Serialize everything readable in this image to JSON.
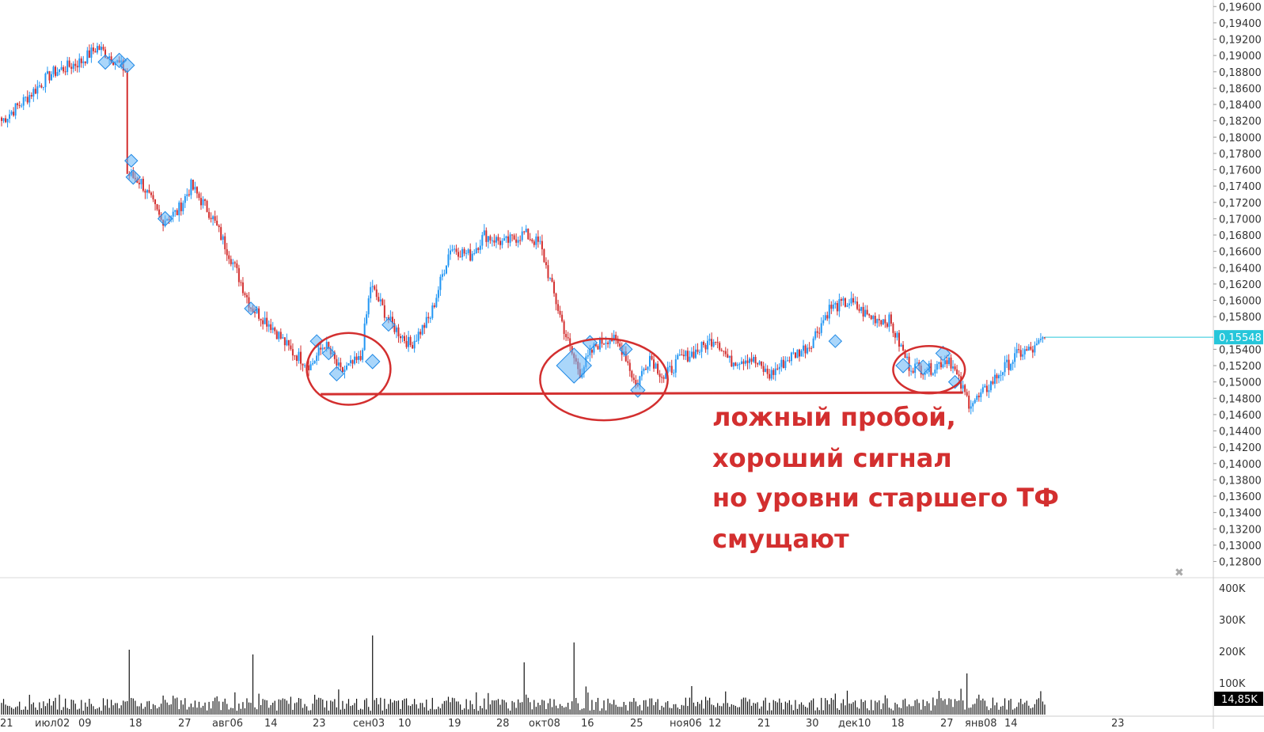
{
  "chart_data": {
    "type": "candlestick",
    "price_axis": {
      "ticks": [
        "0,19600",
        "0,19400",
        "0,19200",
        "0,19000",
        "0,18800",
        "0,18600",
        "0,18400",
        "0,18200",
        "0,18000",
        "0,17800",
        "0,17600",
        "0,17400",
        "0,17200",
        "0,17000",
        "0,16800",
        "0,16600",
        "0,16400",
        "0,16200",
        "0,16000",
        "0,15800",
        "0,15400",
        "0,15200",
        "0,15000",
        "0,14800",
        "0,14600",
        "0,14400",
        "0,14200",
        "0,14000",
        "0,13800",
        "0,13600",
        "0,13400",
        "0,13200",
        "0,13000",
        "0,12800"
      ],
      "range": [
        0.1265,
        0.1968
      ]
    },
    "last_price": {
      "value": 0.15548,
      "label": "0,15548",
      "color": "#26c6da"
    },
    "volume_axis": {
      "ticks": [
        "400K",
        "300K",
        "200K",
        "100K"
      ],
      "range": [
        0,
        420000
      ],
      "last_label": "14,85K"
    },
    "x_axis": {
      "labels": [
        "21",
        "июл02",
        "09",
        "18",
        "27",
        "авг06",
        "14",
        "23",
        "сен03",
        "10",
        "19",
        "28",
        "окт08",
        "16",
        "25",
        "ноя06",
        "12",
        "21",
        "30",
        "дек10",
        "18",
        "27",
        "янв08",
        "14",
        "23"
      ]
    },
    "colors": {
      "up": "#2196f3",
      "down": "#d32f2f",
      "volume": "#111111",
      "marker": "#64b5f6",
      "annotation": "#d32f2f"
    },
    "key_points": [
      {
        "i": 0,
        "close": 0.182
      },
      {
        "i": 10,
        "close": 0.1842
      },
      {
        "i": 25,
        "close": 0.1878
      },
      {
        "i": 40,
        "close": 0.1893
      },
      {
        "i": 48,
        "close": 0.191
      },
      {
        "i": 55,
        "close": 0.1898
      },
      {
        "i": 62,
        "close": 0.1882
      },
      {
        "i": 63,
        "close": 0.1755
      },
      {
        "i": 70,
        "close": 0.1745
      },
      {
        "i": 80,
        "close": 0.1698
      },
      {
        "i": 88,
        "close": 0.1708
      },
      {
        "i": 95,
        "close": 0.174
      },
      {
        "i": 105,
        "close": 0.1705
      },
      {
        "i": 115,
        "close": 0.1652
      },
      {
        "i": 125,
        "close": 0.1592
      },
      {
        "i": 135,
        "close": 0.157
      },
      {
        "i": 145,
        "close": 0.1538
      },
      {
        "i": 155,
        "close": 0.152
      },
      {
        "i": 162,
        "close": 0.1547
      },
      {
        "i": 170,
        "close": 0.1512
      },
      {
        "i": 180,
        "close": 0.1528
      },
      {
        "i": 185,
        "close": 0.1618
      },
      {
        "i": 195,
        "close": 0.1572
      },
      {
        "i": 205,
        "close": 0.1545
      },
      {
        "i": 215,
        "close": 0.158
      },
      {
        "i": 225,
        "close": 0.1665
      },
      {
        "i": 235,
        "close": 0.1655
      },
      {
        "i": 242,
        "close": 0.168
      },
      {
        "i": 252,
        "close": 0.167
      },
      {
        "i": 262,
        "close": 0.1682
      },
      {
        "i": 270,
        "close": 0.1668
      },
      {
        "i": 278,
        "close": 0.1598
      },
      {
        "i": 285,
        "close": 0.154
      },
      {
        "i": 290,
        "close": 0.1512
      },
      {
        "i": 298,
        "close": 0.1545
      },
      {
        "i": 305,
        "close": 0.1555
      },
      {
        "i": 312,
        "close": 0.1538
      },
      {
        "i": 318,
        "close": 0.1495
      },
      {
        "i": 325,
        "close": 0.1532
      },
      {
        "i": 332,
        "close": 0.1505
      },
      {
        "i": 340,
        "close": 0.1528
      },
      {
        "i": 350,
        "close": 0.154
      },
      {
        "i": 358,
        "close": 0.1555
      },
      {
        "i": 365,
        "close": 0.1525
      },
      {
        "i": 375,
        "close": 0.153
      },
      {
        "i": 385,
        "close": 0.1508
      },
      {
        "i": 395,
        "close": 0.153
      },
      {
        "i": 405,
        "close": 0.1545
      },
      {
        "i": 415,
        "close": 0.159
      },
      {
        "i": 425,
        "close": 0.1598
      },
      {
        "i": 435,
        "close": 0.158
      },
      {
        "i": 445,
        "close": 0.1575
      },
      {
        "i": 455,
        "close": 0.152
      },
      {
        "i": 465,
        "close": 0.1515
      },
      {
        "i": 475,
        "close": 0.153
      },
      {
        "i": 480,
        "close": 0.15
      },
      {
        "i": 485,
        "close": 0.1475
      },
      {
        "i": 490,
        "close": 0.148
      },
      {
        "i": 500,
        "close": 0.151
      },
      {
        "i": 510,
        "close": 0.1535
      },
      {
        "i": 518,
        "close": 0.154
      },
      {
        "i": 523,
        "close": 0.15548
      }
    ],
    "volume_spikes": [
      {
        "i": 64,
        "v": 205000
      },
      {
        "i": 126,
        "v": 190000
      },
      {
        "i": 186,
        "v": 250000
      },
      {
        "i": 262,
        "v": 165000
      },
      {
        "i": 287,
        "v": 228000
      },
      {
        "i": 346,
        "v": 90000
      },
      {
        "i": 470,
        "v": 75000
      },
      {
        "i": 484,
        "v": 130000
      }
    ],
    "markers": [
      {
        "i": 52,
        "p": 0.1892,
        "s": 9
      },
      {
        "i": 59,
        "p": 0.1894,
        "s": 9
      },
      {
        "i": 63,
        "p": 0.1888,
        "s": 9
      },
      {
        "i": 65,
        "p": 0.1771,
        "s": 8
      },
      {
        "i": 66,
        "p": 0.1751,
        "s": 9
      },
      {
        "i": 82,
        "p": 0.17,
        "s": 9
      },
      {
        "i": 125,
        "p": 0.159,
        "s": 8
      },
      {
        "i": 158,
        "p": 0.155,
        "s": 8
      },
      {
        "i": 164,
        "p": 0.1535,
        "s": 8
      },
      {
        "i": 168,
        "p": 0.151,
        "s": 9
      },
      {
        "i": 186,
        "p": 0.1525,
        "s": 9
      },
      {
        "i": 194,
        "p": 0.157,
        "s": 8
      },
      {
        "i": 287,
        "p": 0.152,
        "s": 22
      },
      {
        "i": 295,
        "p": 0.1548,
        "s": 9
      },
      {
        "i": 313,
        "p": 0.154,
        "s": 8
      },
      {
        "i": 319,
        "p": 0.149,
        "s": 9
      },
      {
        "i": 418,
        "p": 0.155,
        "s": 8
      },
      {
        "i": 452,
        "p": 0.152,
        "s": 9
      },
      {
        "i": 462,
        "p": 0.1518,
        "s": 9
      },
      {
        "i": 472,
        "p": 0.1535,
        "s": 9
      },
      {
        "i": 478,
        "p": 0.15,
        "s": 8
      }
    ],
    "support_level": {
      "price": 0.1485,
      "from_i": 160,
      "to_i": 482
    },
    "circled_zones": [
      {
        "center_i": 174,
        "center_p": 0.1516,
        "rx_bars": 42,
        "ry_price": 0.0044
      },
      {
        "center_i": 302,
        "center_p": 0.1503,
        "rx_bars": 64,
        "ry_price": 0.005
      },
      {
        "center_i": 465,
        "center_p": 0.1515,
        "rx_bars": 36,
        "ry_price": 0.0029
      }
    ],
    "annotation_lines": [
      "ложный пробой,",
      "хороший сигнал",
      "но уровни старшего ТФ",
      "смущают"
    ]
  }
}
